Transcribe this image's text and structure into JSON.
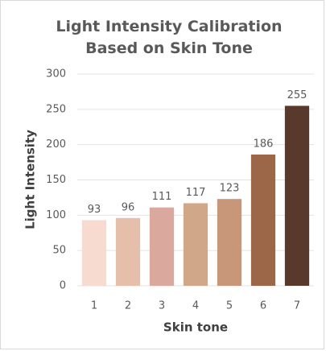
{
  "chart_data": {
    "type": "bar",
    "title": "Light Intensity Calibration Based on Skin Tone",
    "x_label": "Skin tone",
    "y_label": "Light Intensity",
    "categories": [
      "1",
      "2",
      "3",
      "4",
      "5",
      "6",
      "7"
    ],
    "values": [
      93,
      96,
      111,
      117,
      123,
      186,
      255
    ],
    "colors": [
      "#f7dbd0",
      "#e6bfab",
      "#dba89d",
      "#d0a889",
      "#c8977a",
      "#9c6748",
      "#58392b"
    ],
    "ylim": [
      0,
      300
    ],
    "yticks": [
      0,
      50,
      100,
      150,
      200,
      250,
      300
    ],
    "grid": true
  }
}
